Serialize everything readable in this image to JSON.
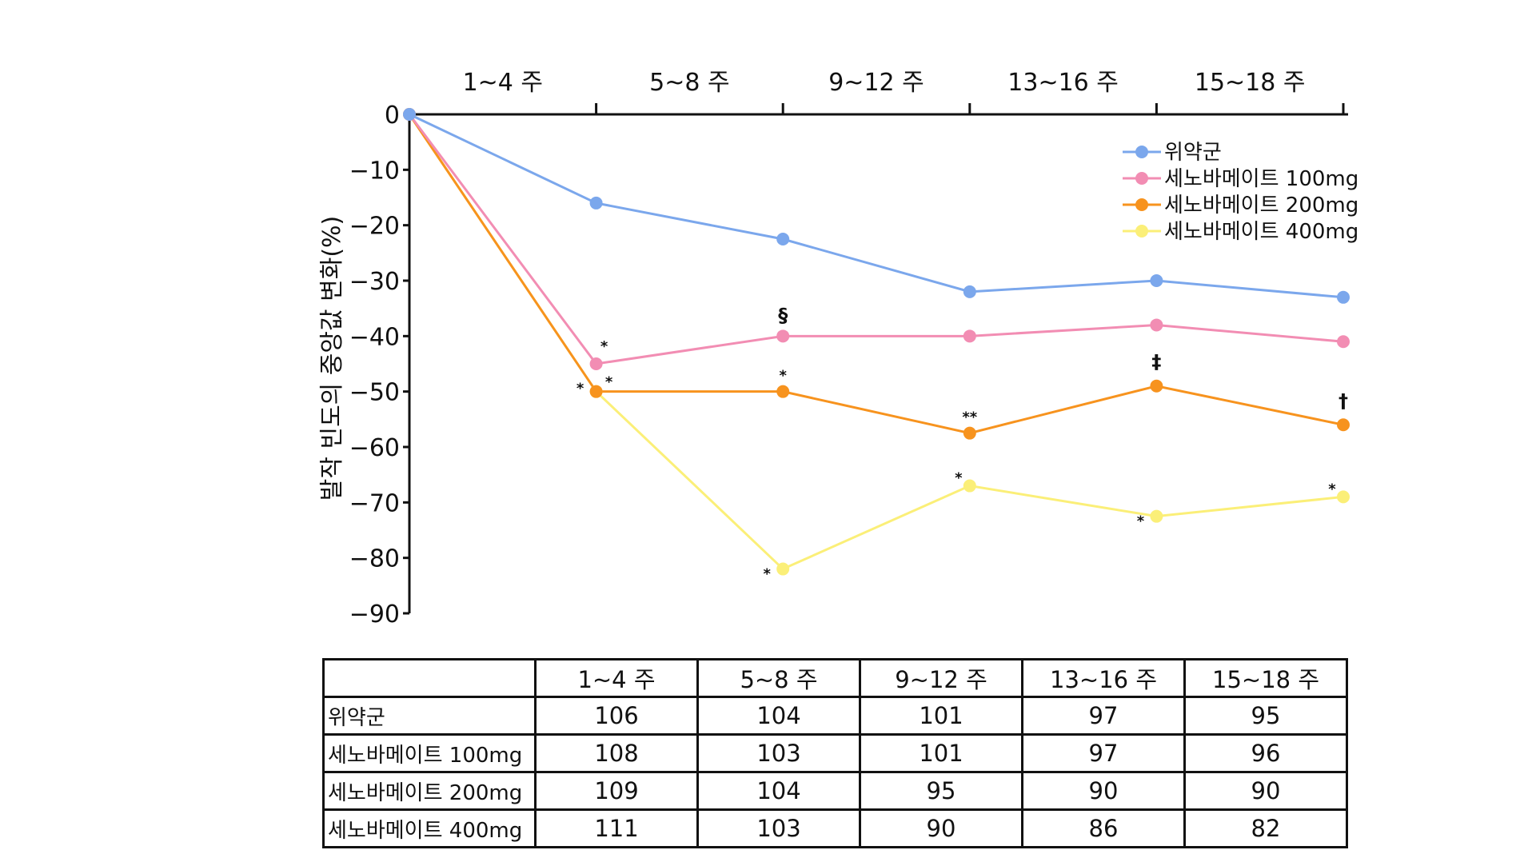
{
  "chart_data": {
    "type": "line",
    "ylabel": "발작 빈도의 중앙값 변화(%)",
    "ylim": [
      -90,
      0
    ],
    "yticks": [
      0,
      -10,
      -20,
      -30,
      -40,
      -50,
      -60,
      -70,
      -80,
      -90
    ],
    "period_labels": [
      "1~4 주",
      "5~8 주",
      "9~12 주",
      "13~16 주",
      "15~18 주"
    ],
    "x": [
      0,
      1,
      2,
      3,
      4,
      5
    ],
    "legend_position": "top-right",
    "series": [
      {
        "name": "위약군",
        "color": "#7ba7ec",
        "values": [
          0,
          -16,
          -22.5,
          -32,
          -30,
          -33
        ],
        "markers": [
          "",
          "",
          "",
          "",
          "",
          ""
        ]
      },
      {
        "name": "세노바메이트 100mg",
        "color": "#f28db3",
        "values": [
          0,
          -45,
          -40,
          -40,
          -38,
          -41
        ],
        "markers": [
          "",
          "*",
          "§",
          "",
          "",
          ""
        ]
      },
      {
        "name": "세노바메이트 200mg",
        "color": "#f7931e",
        "values": [
          0,
          -50,
          -50,
          -57.5,
          -49,
          -56
        ],
        "markers": [
          "",
          "*",
          "*",
          "**",
          "‡",
          "†"
        ]
      },
      {
        "name": "세노바메이트 400mg",
        "color": "#fbef78",
        "values": [
          0,
          -50,
          -82,
          -67,
          -72.5,
          -69
        ],
        "markers": [
          "",
          "*",
          "*",
          "*",
          "*",
          "*"
        ]
      }
    ]
  },
  "table": {
    "corner": "",
    "headers": [
      "1~4 주",
      "5~8 주",
      "9~12 주",
      "13~16 주",
      "15~18 주"
    ],
    "rows": [
      {
        "label": "위약군",
        "values": [
          "106",
          "104",
          "101",
          "97",
          "95"
        ]
      },
      {
        "label": "세노바메이트 100mg",
        "values": [
          "108",
          "103",
          "101",
          "97",
          "96"
        ]
      },
      {
        "label": "세노바메이트 200mg",
        "values": [
          "109",
          "104",
          "95",
          "90",
          "90"
        ]
      },
      {
        "label": "세노바메이트 400mg",
        "values": [
          "111",
          "103",
          "90",
          "86",
          "82"
        ]
      }
    ]
  }
}
